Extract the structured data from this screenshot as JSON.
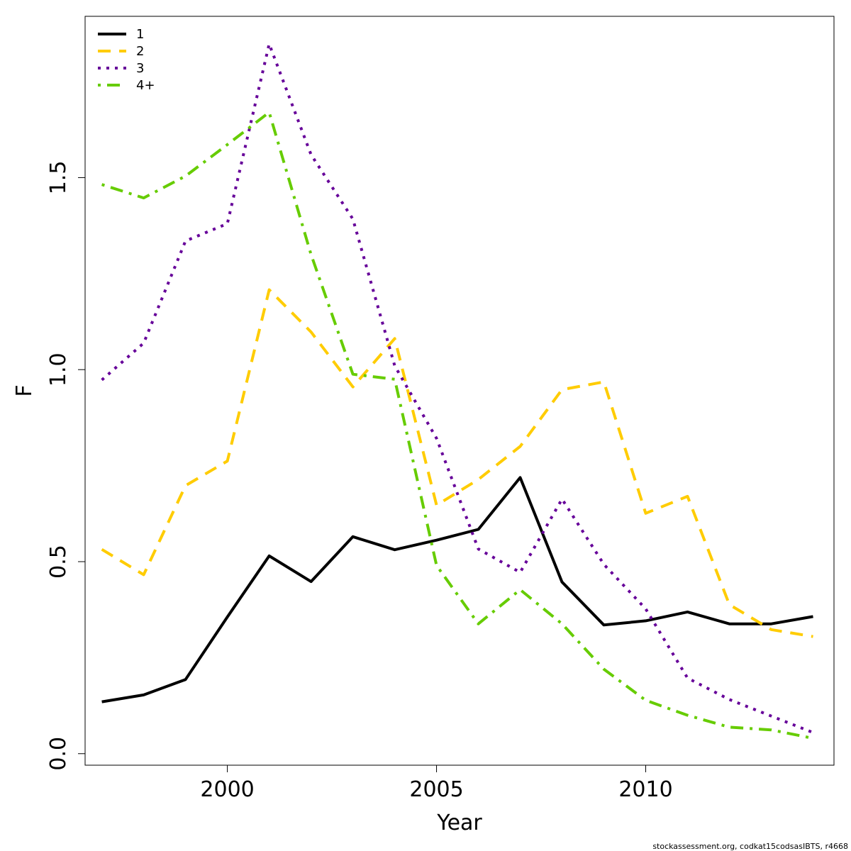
{
  "chart_data": {
    "type": "line",
    "xlabel": "Year",
    "ylabel": "F",
    "xlim": [
      1996.6,
      2014.5
    ],
    "ylim": [
      -0.03,
      1.92
    ],
    "xticks": [
      2000,
      2005,
      2010
    ],
    "yticks": [
      0.0,
      0.5,
      1.0,
      1.5
    ],
    "ytick_labels": [
      "0.0",
      "0.5",
      "1.0",
      "1.5"
    ],
    "legend_position": "top-left",
    "x": [
      1997,
      1998,
      1999,
      2000,
      2001,
      2002,
      2003,
      2004,
      2005,
      2006,
      2007,
      2008,
      2009,
      2010,
      2011,
      2012,
      2013,
      2014
    ],
    "series": [
      {
        "name": "1",
        "color": "#000000",
        "dash": "solid",
        "values": [
          0.135,
          0.153,
          0.193,
          0.356,
          0.515,
          0.448,
          0.565,
          0.531,
          0.556,
          0.584,
          0.719,
          0.447,
          0.335,
          0.346,
          0.369,
          0.338,
          0.338,
          0.357
        ]
      },
      {
        "name": "2",
        "color": "#ffcc00",
        "dash": "dashed",
        "values": [
          0.532,
          0.466,
          0.698,
          0.762,
          1.208,
          1.098,
          0.955,
          1.081,
          0.647,
          0.714,
          0.8,
          0.948,
          0.968,
          0.626,
          0.67,
          0.388,
          0.323,
          0.305
        ]
      },
      {
        "name": "3",
        "color": "#660099",
        "dash": "dotted",
        "values": [
          0.973,
          1.069,
          1.335,
          1.38,
          1.848,
          1.56,
          1.392,
          1.01,
          0.821,
          0.533,
          0.472,
          0.663,
          0.493,
          0.377,
          0.197,
          0.141,
          0.098,
          0.055
        ]
      },
      {
        "name": "4+",
        "color": "#66cc00",
        "dash": "dotdash",
        "values": [
          1.482,
          1.447,
          1.504,
          1.586,
          1.67,
          1.3,
          0.988,
          0.975,
          0.49,
          0.338,
          0.427,
          0.338,
          0.22,
          0.139,
          0.1,
          0.069,
          0.062,
          0.04
        ]
      }
    ]
  },
  "footer": "stockassessment.org, codkat15codsasIBTS, r4668"
}
